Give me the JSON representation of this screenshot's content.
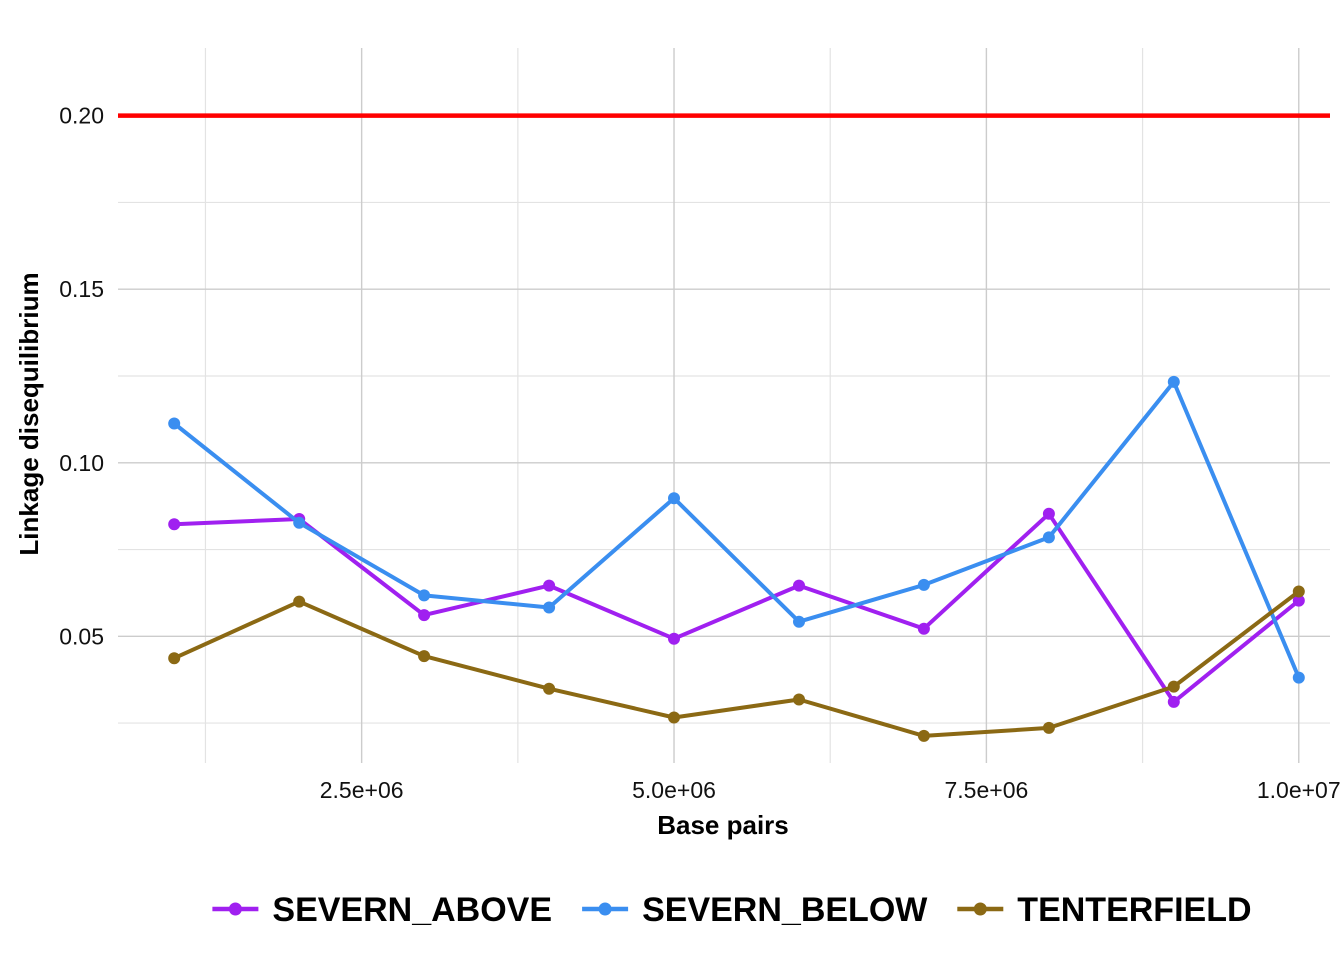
{
  "chart_data": {
    "type": "line",
    "xlabel": "Base pairs",
    "ylabel": "Linkage disequilibrium",
    "xlim": [
      550000,
      10250000
    ],
    "ylim": [
      0.0135,
      0.2195
    ],
    "x_ticks": [
      2500000,
      5000000,
      7500000,
      10000000
    ],
    "x_tick_labels": [
      "2.5e+06",
      "5.0e+06",
      "7.5e+06",
      "1.0e+07"
    ],
    "x_minor_ticks": [
      1250000,
      3750000,
      6250000,
      8750000
    ],
    "y_ticks": [
      0.05,
      0.1,
      0.15,
      0.2
    ],
    "y_tick_labels": [
      "0.05",
      "0.10",
      "0.15",
      "0.20"
    ],
    "y_minor_ticks": [
      0.025,
      0.075,
      0.125,
      0.175
    ],
    "grid": true,
    "legend_position": "bottom",
    "reference_line": {
      "y": 0.2,
      "color": "#ff0000"
    },
    "x": [
      1000000,
      2000000,
      3000000,
      4000000,
      5000000,
      6000000,
      7000000,
      8000000,
      9000000,
      10000000
    ],
    "series": [
      {
        "name": "SEVERN_ABOVE",
        "color": "#a020f0",
        "values": [
          0.0823,
          0.0838,
          0.0561,
          0.0646,
          0.0493,
          0.0646,
          0.0522,
          0.0853,
          0.0311,
          0.0603
        ]
      },
      {
        "name": "SEVERN_BELOW",
        "color": "#3a8ef0",
        "values": [
          0.1113,
          0.0827,
          0.0618,
          0.0583,
          0.0898,
          0.0542,
          0.0648,
          0.0785,
          0.1233,
          0.0381
        ]
      },
      {
        "name": "TENTERFIELD",
        "color": "#8b6914",
        "values": [
          0.0437,
          0.06,
          0.0443,
          0.0349,
          0.0266,
          0.0318,
          0.0213,
          0.0236,
          0.0355,
          0.0629
        ]
      }
    ]
  }
}
